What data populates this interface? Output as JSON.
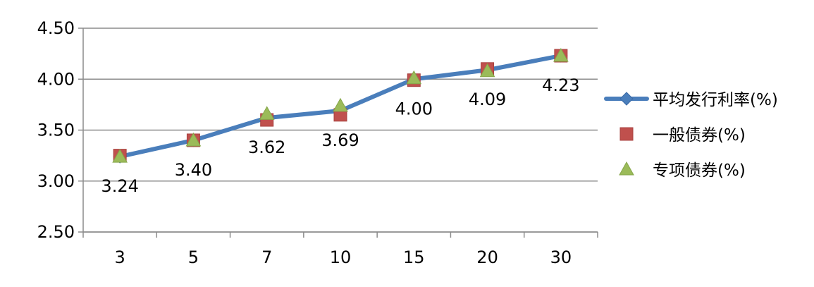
{
  "chart_data": {
    "type": "line",
    "categories": [
      "3",
      "5",
      "7",
      "10",
      "15",
      "20",
      "30"
    ],
    "ylim": [
      2.5,
      4.5
    ],
    "yticks": [
      "2.50",
      "3.00",
      "3.50",
      "4.00",
      "4.50"
    ],
    "grid": true,
    "legend_position": "right",
    "series": [
      {
        "name": "平均发行利率(%)",
        "marker": "diamond",
        "line": true,
        "color": "#4A7EBB",
        "values": [
          3.24,
          3.4,
          3.62,
          3.69,
          4.0,
          4.09,
          4.23
        ],
        "labels": [
          "3.24",
          "3.40",
          "3.62",
          "3.69",
          "4.00",
          "4.09",
          "4.23"
        ]
      },
      {
        "name": "一般债券(%)",
        "marker": "square",
        "line": false,
        "color": "#C0504D",
        "values": [
          3.25,
          3.4,
          3.6,
          3.65,
          3.99,
          4.1,
          4.23
        ]
      },
      {
        "name": "专项债券(%)",
        "marker": "triangle",
        "line": false,
        "color": "#9BBB59",
        "values": [
          3.24,
          3.4,
          3.66,
          3.74,
          4.01,
          4.08,
          4.23
        ]
      }
    ]
  }
}
